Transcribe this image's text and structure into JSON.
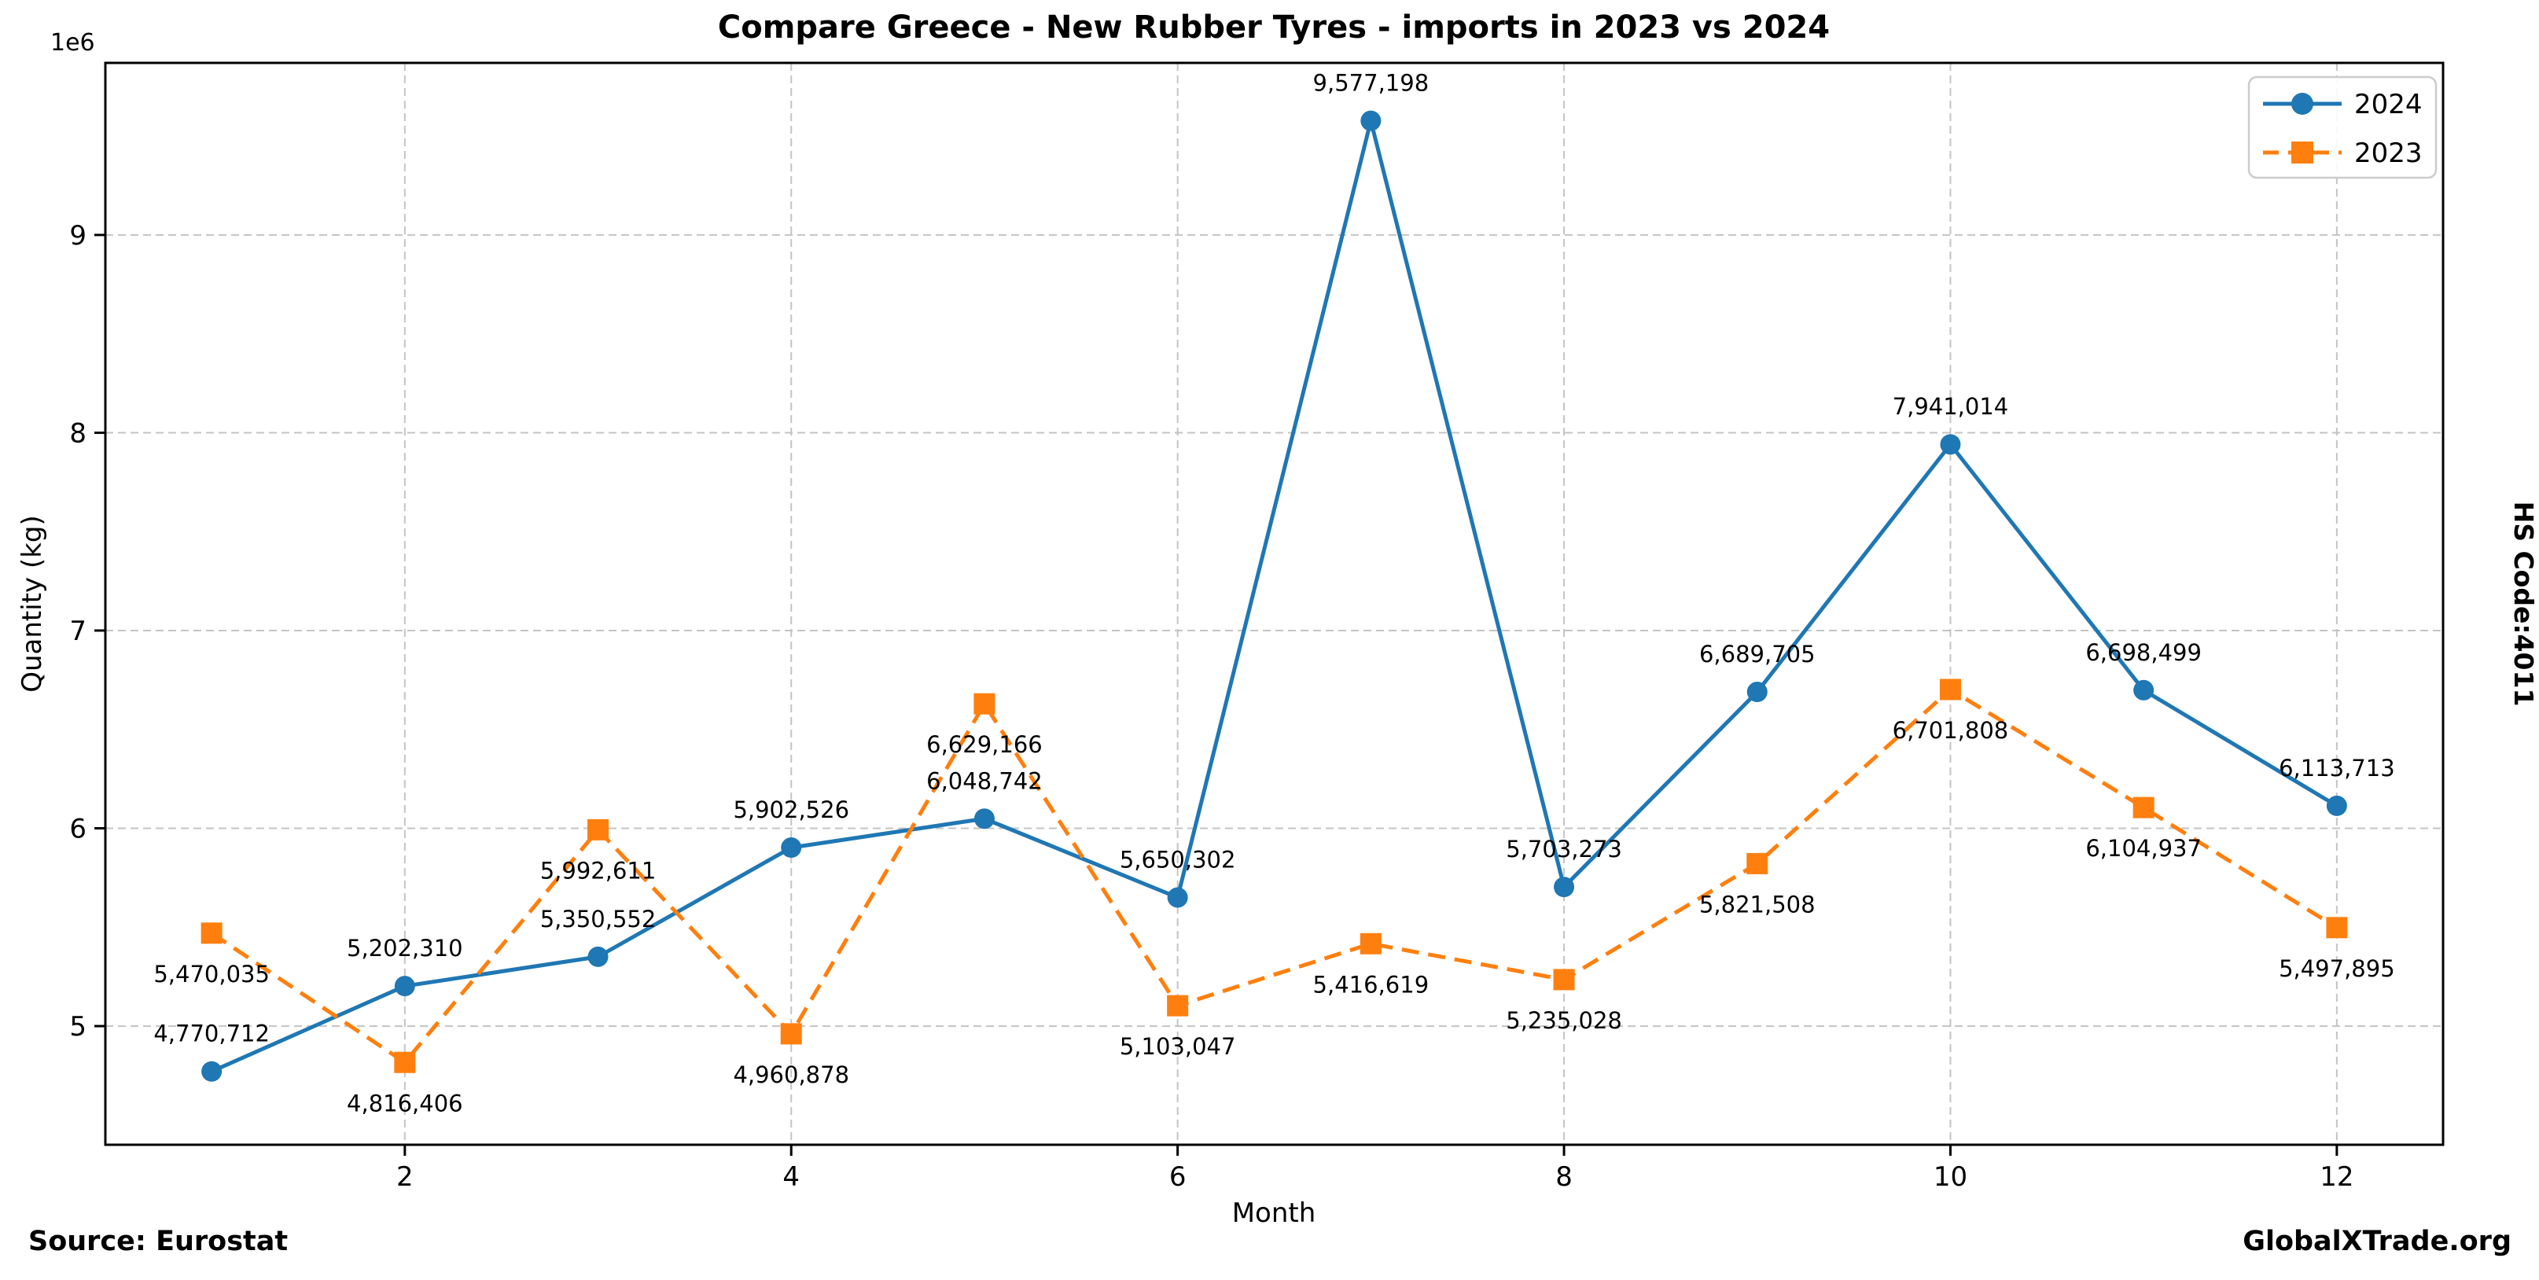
{
  "chart_data": {
    "type": "line",
    "title": "Compare Greece - New Rubber Tyres - imports in 2023 vs 2024",
    "xlabel": "Month",
    "ylabel": "Quantity (kg)",
    "y_offset_label": "1e6",
    "x": [
      1,
      2,
      3,
      4,
      5,
      6,
      7,
      8,
      9,
      10,
      11,
      12
    ],
    "xlim": [
      0.45,
      12.55
    ],
    "ylim": [
      4400000,
      9870000
    ],
    "xticks": [
      2,
      4,
      6,
      8,
      10,
      12
    ],
    "yticks": [
      5000000,
      6000000,
      7000000,
      8000000,
      9000000
    ],
    "ytick_labels": [
      "5",
      "6",
      "7",
      "8",
      "9"
    ],
    "grid": true,
    "legend_position": "upper right",
    "series": [
      {
        "name": "2024",
        "color": "#1f77b4",
        "marker": "circle",
        "line_style": "solid",
        "data_label_position": "above",
        "values": [
          4770712,
          5202310,
          5350552,
          5902526,
          6048742,
          5650302,
          9577198,
          5703273,
          6689705,
          7941014,
          6698499,
          6113713
        ]
      },
      {
        "name": "2023",
        "color": "#ff7f0e",
        "marker": "square",
        "line_style": "dashed",
        "data_label_position": "below",
        "values": [
          5470035,
          4816406,
          5992611,
          4960878,
          6629166,
          5103047,
          5416619,
          5235028,
          5821508,
          6701808,
          6104937,
          5497895
        ]
      }
    ]
  },
  "footer": {
    "source": "Source: Eurostat",
    "brand": "GlobalXTrade.org"
  },
  "side_label": "HS Code:4011",
  "colors": {
    "grid": "#c4c4c4",
    "spine": "#000000",
    "text": "#000000",
    "legend_border": "#cccccc"
  }
}
